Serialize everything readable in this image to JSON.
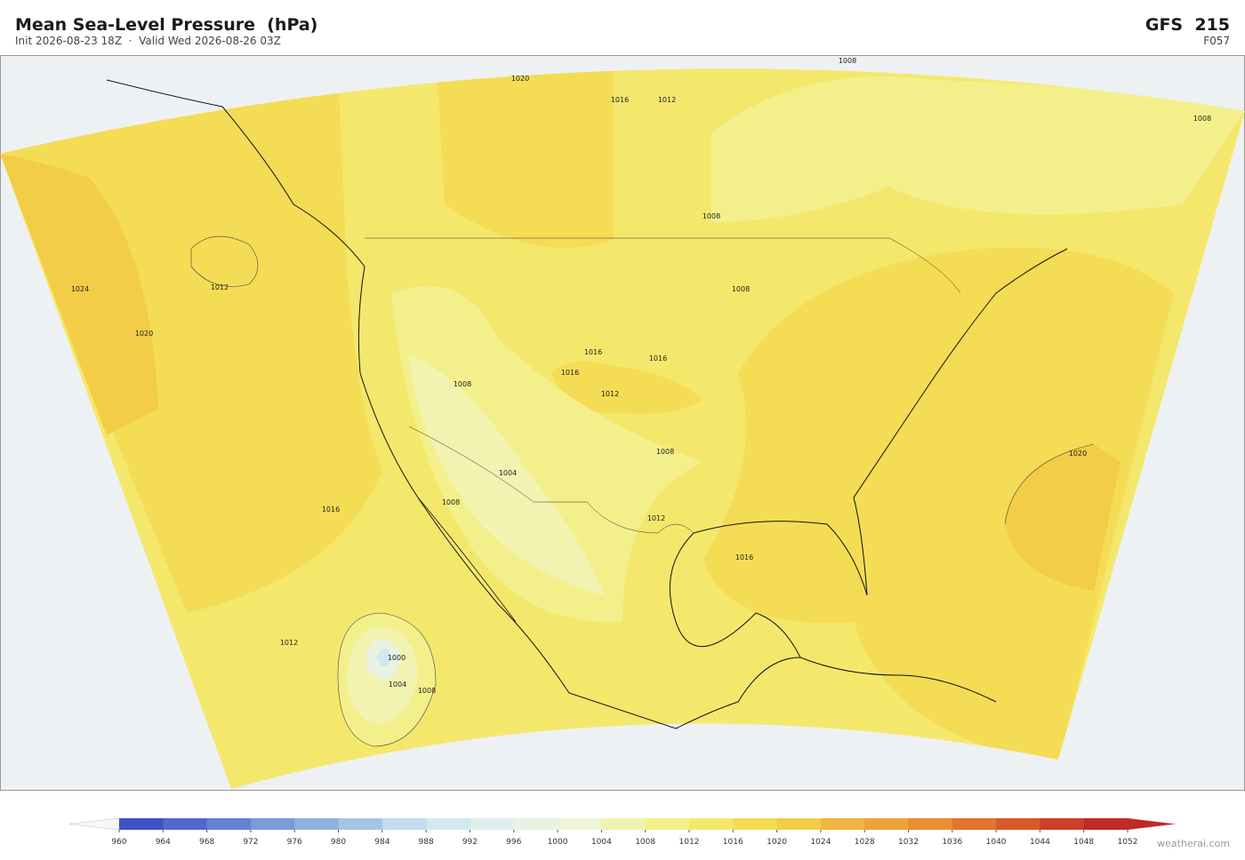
{
  "header": {
    "title": "Mean Sea-Level Pressure  (hPa)",
    "subtitle": "Init 2026-08-23 18Z  ·  Valid Wed 2026-08-26 03Z",
    "model": "GFS  215",
    "forecast": "F057"
  },
  "map": {
    "contour_labels": [
      1008,
      1020,
      1016,
      1012,
      1008,
      1024,
      1012,
      1020,
      1008,
      1008,
      1016,
      1016,
      1016,
      1012,
      1008,
      1004,
      1008,
      1012,
      1016,
      1008,
      1016,
      1020,
      1012,
      1000,
      1004,
      1008
    ]
  },
  "colorbar": {
    "ticks": [
      960,
      964,
      968,
      972,
      976,
      980,
      984,
      988,
      992,
      996,
      1000,
      1004,
      1008,
      1012,
      1016,
      1020,
      1024,
      1028,
      1032,
      1036,
      1040,
      1044,
      1048,
      1052
    ],
    "colors": [
      "#3f51c4",
      "#5268cc",
      "#6581d4",
      "#7a9ad8",
      "#8fb0de",
      "#a6c5e6",
      "#c0dcee",
      "#d2e8f0",
      "#e0efee",
      "#e8f3e4",
      "#eef5d4",
      "#f2f3b0",
      "#f3f08c",
      "#f4e86c",
      "#f5dc55",
      "#f3cc48",
      "#f0b640",
      "#eea23a",
      "#ea8c34",
      "#e2742e",
      "#d85a2a",
      "#cc4028",
      "#c02a26"
    ]
  },
  "credit": "weatherai.com"
}
